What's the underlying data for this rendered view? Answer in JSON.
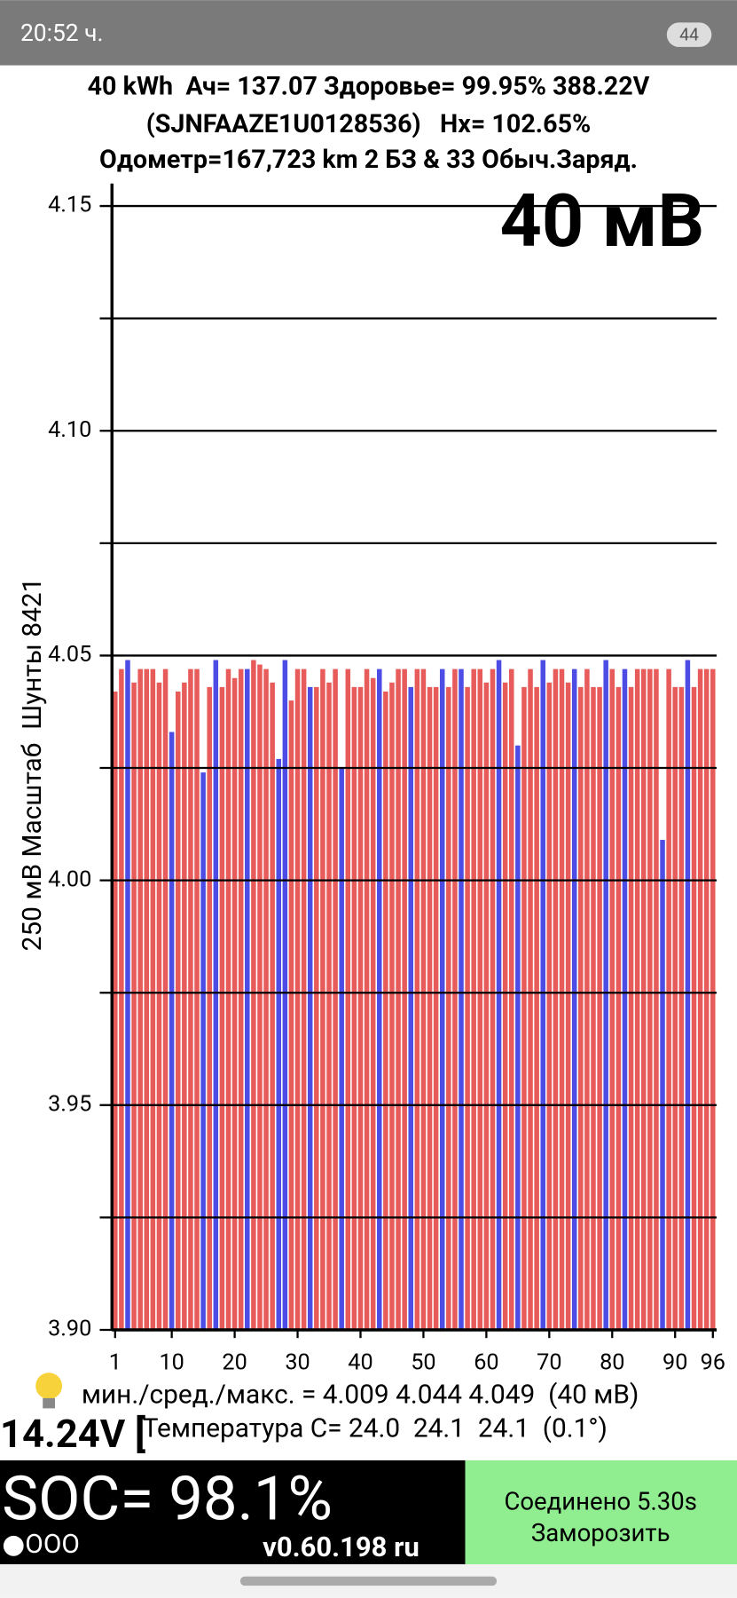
{
  "status_bar": {
    "time": "20:52 ч.",
    "battery": "44"
  },
  "header": {
    "line1": "40 kWh  Ач= 137.07 Здоровье= 99.95% 388.22V",
    "line2": "(SJNFAAZE1U0128536)   Hx= 102.65%",
    "line3": "Одометр=167,723 km 2 БЗ & 33 Обыч.Заряд."
  },
  "chart_data": {
    "type": "bar",
    "annotation": "40 мВ",
    "y_label": "250 мВ Масштаб  Шунты 8421",
    "x": [
      1,
      2,
      3,
      4,
      5,
      6,
      7,
      8,
      9,
      10,
      11,
      12,
      13,
      14,
      15,
      16,
      17,
      18,
      19,
      20,
      21,
      22,
      23,
      24,
      25,
      26,
      27,
      28,
      29,
      30,
      31,
      32,
      33,
      34,
      35,
      36,
      37,
      38,
      39,
      40,
      41,
      42,
      43,
      44,
      45,
      46,
      47,
      48,
      49,
      50,
      51,
      52,
      53,
      54,
      55,
      56,
      57,
      58,
      59,
      60,
      61,
      62,
      63,
      64,
      65,
      66,
      67,
      68,
      69,
      70,
      71,
      72,
      73,
      74,
      75,
      76,
      77,
      78,
      79,
      80,
      81,
      82,
      83,
      84,
      85,
      86,
      87,
      88,
      89,
      90,
      91,
      92,
      93,
      94,
      95,
      96
    ],
    "values": [
      4.042,
      4.047,
      4.049,
      4.044,
      4.047,
      4.047,
      4.047,
      4.044,
      4.047,
      4.033,
      4.042,
      4.044,
      4.047,
      4.047,
      4.024,
      4.043,
      4.049,
      4.043,
      4.047,
      4.045,
      4.047,
      4.047,
      4.049,
      4.048,
      4.047,
      4.044,
      4.027,
      4.049,
      4.04,
      4.047,
      4.047,
      4.043,
      4.043,
      4.047,
      4.044,
      4.047,
      4.025,
      4.047,
      4.043,
      4.043,
      4.047,
      4.045,
      4.047,
      4.042,
      4.044,
      4.047,
      4.047,
      4.043,
      4.047,
      4.047,
      4.043,
      4.043,
      4.047,
      4.043,
      4.047,
      4.047,
      4.043,
      4.047,
      4.047,
      4.044,
      4.047,
      4.049,
      4.044,
      4.047,
      4.03,
      4.043,
      4.047,
      4.043,
      4.049,
      4.044,
      4.047,
      4.047,
      4.044,
      4.047,
      4.043,
      4.047,
      4.043,
      4.043,
      4.049,
      4.047,
      4.043,
      4.047,
      4.043,
      4.047,
      4.047,
      4.047,
      4.047,
      4.009,
      4.047,
      4.043,
      4.043,
      4.049,
      4.043,
      4.047,
      4.047,
      4.047
    ],
    "colors": [
      "#e85b5b",
      "#e85b5b",
      "#4d4de6",
      "#e85b5b",
      "#e85b5b",
      "#e85b5b",
      "#e85b5b",
      "#e85b5b",
      "#e85b5b",
      "#4d4de6",
      "#e85b5b",
      "#e85b5b",
      "#e85b5b",
      "#e85b5b",
      "#4d4de6",
      "#e85b5b",
      "#4d4de6",
      "#e85b5b",
      "#e85b5b",
      "#e85b5b",
      "#e85b5b",
      "#4d4de6",
      "#e85b5b",
      "#e85b5b",
      "#e85b5b",
      "#e85b5b",
      "#4d4de6",
      "#4d4de6",
      "#e85b5b",
      "#e85b5b",
      "#e85b5b",
      "#4d4de6",
      "#e85b5b",
      "#e85b5b",
      "#e85b5b",
      "#e85b5b",
      "#4d4de6",
      "#e85b5b",
      "#e85b5b",
      "#e85b5b",
      "#e85b5b",
      "#e85b5b",
      "#4d4de6",
      "#e85b5b",
      "#e85b5b",
      "#e85b5b",
      "#e85b5b",
      "#4d4de6",
      "#e85b5b",
      "#e85b5b",
      "#e85b5b",
      "#e85b5b",
      "#4d4de6",
      "#e85b5b",
      "#e85b5b",
      "#4d4de6",
      "#e85b5b",
      "#e85b5b",
      "#e85b5b",
      "#e85b5b",
      "#e85b5b",
      "#4d4de6",
      "#e85b5b",
      "#e85b5b",
      "#4d4de6",
      "#e85b5b",
      "#e85b5b",
      "#e85b5b",
      "#4d4de6",
      "#e85b5b",
      "#e85b5b",
      "#e85b5b",
      "#e85b5b",
      "#4d4de6",
      "#e85b5b",
      "#e85b5b",
      "#e85b5b",
      "#e85b5b",
      "#4d4de6",
      "#e85b5b",
      "#e85b5b",
      "#4d4de6",
      "#e85b5b",
      "#e85b5b",
      "#e85b5b",
      "#e85b5b",
      "#e85b5b",
      "#4d4de6",
      "#e85b5b",
      "#e85b5b",
      "#e85b5b",
      "#4d4de6",
      "#e85b5b",
      "#e85b5b",
      "#e85b5b",
      "#e85b5b"
    ],
    "xlim": [
      0.5,
      96.6
    ],
    "xticks": [
      1,
      10,
      20,
      30,
      40,
      50,
      60,
      70,
      80,
      90,
      96
    ],
    "ylim": [
      3.9,
      4.155
    ],
    "yticks": [
      4.15,
      {
        "value": 4.1,
        "label": "4.10"
      },
      4.05,
      {
        "value": 4,
        "label": "4.00"
      },
      3.95,
      {
        "value": 3.9,
        "label": "3.90"
      }
    ],
    "minor_yticks": [
      4.125,
      4.075,
      4.025,
      3.975,
      3.925
    ],
    "grid": true
  },
  "stats": {
    "minmax": "мин./сред./макс. = 4.009 4.044 4.049  (40 мВ)",
    "voltage12": "14.24V [",
    "temperature": "Температура C= 24.0  24.1  24.1  (0.1°)"
  },
  "footer": {
    "soc": "SOC= 98.1%",
    "dots": "●OOO",
    "version": "v0.60.198 ru",
    "connected": "Соединено 5.30s",
    "freeze": "Заморозить"
  }
}
